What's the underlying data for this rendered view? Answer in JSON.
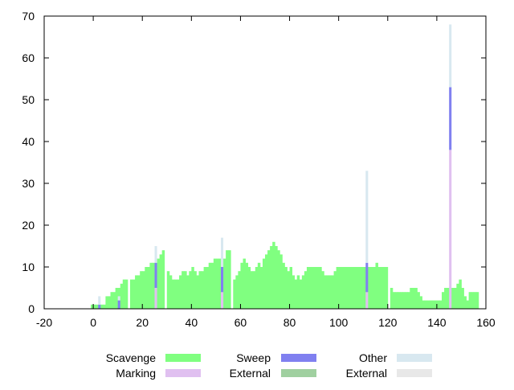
{
  "chart_data": {
    "type": "bar",
    "stacked": true,
    "title": "",
    "xlabel": "",
    "ylabel": "",
    "xlim": [
      -20,
      160
    ],
    "ylim": [
      0,
      70
    ],
    "xticks": [
      -20,
      0,
      20,
      40,
      60,
      80,
      100,
      120,
      140,
      160
    ],
    "yticks": [
      0,
      10,
      20,
      30,
      40,
      50,
      60,
      70
    ],
    "grid": false,
    "legend_position": "bottom",
    "colors": {
      "Scavenge": "#80ff80",
      "Marking": "#e0c0f0",
      "Sweep": "#8080f0",
      "External_sweep": "#a0d0a0",
      "Other": "#d8e8f0",
      "External_other": "#e8e8e8"
    },
    "legend": [
      {
        "label": "Scavenge",
        "color_key": "Scavenge"
      },
      {
        "label": "Marking",
        "color_key": "Marking"
      },
      {
        "label": "Sweep",
        "color_key": "Sweep"
      },
      {
        "label": "External",
        "color_key": "External_sweep"
      },
      {
        "label": "Other",
        "color_key": "Other"
      },
      {
        "label": "External",
        "color_key": "External_other"
      }
    ],
    "scavenge": {
      "name": "Scavenge",
      "x_start": -1,
      "x_step": 1,
      "values": [
        1,
        1,
        1,
        1,
        1,
        1,
        3,
        3,
        4,
        4,
        5,
        5,
        6,
        7,
        7,
        0,
        7,
        7,
        8,
        8,
        9,
        9,
        10,
        10,
        11,
        11,
        11,
        12,
        13,
        14,
        0,
        9,
        8,
        7,
        7,
        7,
        8,
        9,
        9,
        8,
        9,
        10,
        9,
        8,
        9,
        9,
        10,
        10,
        11,
        11,
        12,
        12,
        12,
        12,
        12,
        14,
        14,
        0,
        7,
        8,
        9,
        11,
        12,
        11,
        10,
        9,
        9,
        10,
        11,
        10,
        12,
        13,
        14,
        15,
        16,
        15,
        14,
        13,
        11,
        10,
        9,
        10,
        8,
        7,
        8,
        7,
        8,
        9,
        10,
        10,
        10,
        10,
        10,
        10,
        9,
        8,
        8,
        8,
        8,
        9,
        10,
        10,
        10,
        10,
        10,
        10,
        10,
        10,
        10,
        10,
        10,
        10,
        10,
        10,
        10,
        10,
        11,
        10,
        10,
        10,
        10,
        0,
        5,
        4,
        4,
        4,
        4,
        4,
        4,
        4,
        5,
        5,
        5,
        4,
        3,
        2,
        2,
        2,
        2,
        2,
        2,
        2,
        2,
        4,
        5,
        5,
        5,
        5,
        5,
        6,
        7,
        5,
        3,
        2,
        4,
        4,
        4,
        4,
        0
      ]
    },
    "stacked_bars": [
      {
        "x": 2,
        "segments": {
          "Sweep": 1,
          "Other": 2
        }
      },
      {
        "x": 10,
        "segments": {
          "Sweep": 2,
          "Other": 1
        }
      },
      {
        "x": 25,
        "segments": {
          "Marking": 5,
          "Sweep": 6,
          "Other": 4
        }
      },
      {
        "x": 52,
        "segments": {
          "Marking": 4,
          "Sweep": 6,
          "Other": 7
        }
      },
      {
        "x": 111,
        "segments": {
          "Marking": 4,
          "Sweep": 7,
          "Other": 22
        }
      },
      {
        "x": 145,
        "segments": {
          "Marking": 38,
          "Sweep": 15,
          "Other": 15
        }
      }
    ]
  }
}
